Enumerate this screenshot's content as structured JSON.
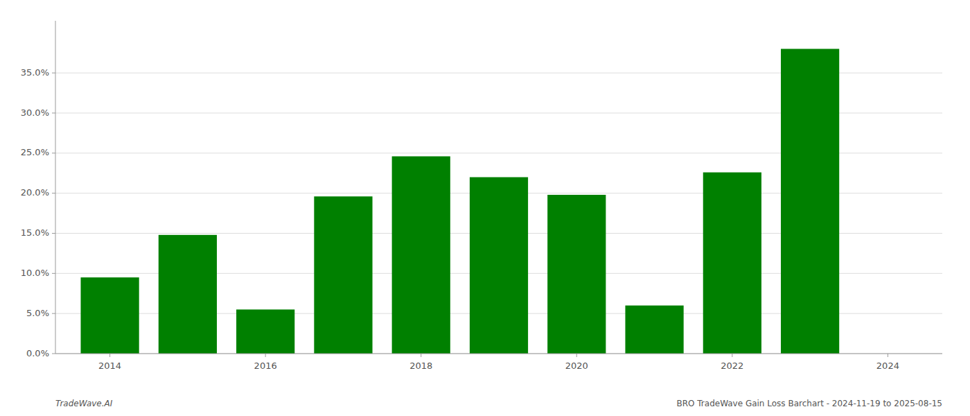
{
  "chart_data": {
    "type": "bar",
    "x": [
      2014,
      2015,
      2016,
      2017,
      2018,
      2019,
      2020,
      2021,
      2022,
      2023
    ],
    "values": [
      0.095,
      0.148,
      0.055,
      0.196,
      0.246,
      0.22,
      0.198,
      0.06,
      0.226,
      0.38
    ],
    "color": "#008000",
    "xlim": [
      2013.3,
      2024.7
    ],
    "ylim": [
      0.0,
      0.415
    ],
    "xticks": [
      2014,
      2016,
      2018,
      2020,
      2022,
      2024
    ],
    "yticks": [
      {
        "value": 0.0,
        "label": "0.0%"
      },
      {
        "value": 0.05,
        "label": "5.0%"
      },
      {
        "value": 0.1,
        "label": "10.0%"
      },
      {
        "value": 0.15,
        "label": "15.0%"
      },
      {
        "value": 0.2,
        "label": "20.0%"
      },
      {
        "value": 0.25,
        "label": "25.0%"
      },
      {
        "value": 0.3,
        "label": "30.0%"
      },
      {
        "value": 0.35,
        "label": "35.0%"
      }
    ],
    "grid": true,
    "annotations": [
      {
        "text": "TradeWave.AI"
      },
      {
        "text": "BRO TradeWave Gain Loss Barchart - 2024-11-19 to 2025-08-15"
      }
    ]
  }
}
